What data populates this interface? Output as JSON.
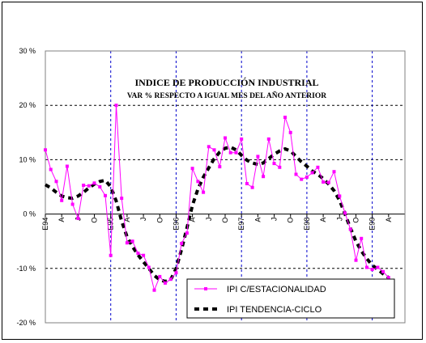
{
  "chart_data": {
    "type": "line",
    "title": "INDICE DE PRODUCCIÓN INDUSTRIAL",
    "subtitle": "VAR % RESPECTO A IGUAL MES DEL AÑO ANTERIOR",
    "ylim": [
      -20,
      30
    ],
    "yticks": [
      30,
      20,
      10,
      0,
      -10,
      -20
    ],
    "ytick_labels": [
      "30 %",
      "20 %",
      "10 %",
      "0 %",
      "-10 %",
      "-20 %"
    ],
    "x_tick_labels": [
      "E94",
      "A",
      "J",
      "O",
      "E95",
      "A",
      "J",
      "O",
      "E96",
      "A",
      "J",
      "O",
      "E97",
      "A",
      "J",
      "O",
      "E98",
      "A",
      "J",
      "O",
      "E99",
      "A"
    ],
    "grid": true,
    "legend_placement": "bottom-right",
    "colors": {
      "series1": "#ff00ff",
      "series2": "#000000"
    },
    "series": [
      {
        "name": "IPI C/ESTACIONALIDAD",
        "values": [
          11.8,
          8.2,
          6.0,
          2.5,
          8.8,
          1.8,
          -0.8,
          5.3,
          5.2,
          5.7,
          5.0,
          3.4,
          -7.6,
          20.0,
          2.9,
          -5.3,
          -5.0,
          -7.2,
          -7.6,
          -9.8,
          -14.0,
          -11.5,
          -12.7,
          -12.0,
          -10.8,
          -5.4,
          -3.5,
          8.4,
          6.0,
          4.0,
          12.4,
          11.8,
          8.7,
          14.0,
          11.3,
          11.3,
          13.8,
          5.6,
          4.9,
          10.6,
          6.9,
          13.8,
          9.3,
          8.6,
          17.8,
          15.0,
          7.3,
          6.4,
          6.8,
          7.6,
          8.6,
          5.9,
          5.8,
          7.8,
          3.3,
          0.2,
          -2.8,
          -8.5,
          -4.5,
          -9.8,
          -10.2,
          -9.8,
          -10.6,
          -11.7
        ]
      },
      {
        "name": "IPI TENDENCIA-CICLO",
        "values": [
          5.4,
          4.8,
          4.0,
          3.3,
          3.0,
          2.9,
          3.3,
          4.0,
          4.8,
          5.5,
          6.0,
          6.2,
          5.0,
          2.4,
          -1.3,
          -4.2,
          -6.0,
          -7.5,
          -8.8,
          -10.0,
          -11.3,
          -12.1,
          -12.4,
          -12.1,
          -10.0,
          -6.5,
          -2.5,
          1.6,
          4.6,
          6.8,
          8.5,
          10.2,
          11.4,
          12.1,
          12.3,
          11.8,
          10.8,
          9.9,
          9.4,
          9.1,
          9.4,
          10.2,
          11.0,
          11.6,
          12.0,
          11.6,
          10.6,
          9.6,
          8.8,
          7.9,
          7.3,
          6.5,
          5.5,
          4.3,
          2.5,
          0.0,
          -2.6,
          -5.0,
          -6.8,
          -8.2,
          -9.4,
          -10.2,
          -11.0,
          -11.7
        ]
      }
    ]
  }
}
